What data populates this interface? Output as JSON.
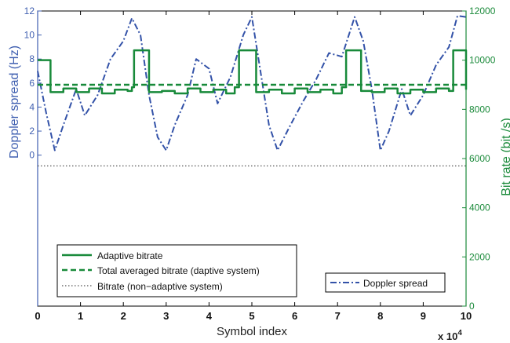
{
  "chart_data": {
    "type": "line",
    "xlabel": "Symbol index",
    "x_multiplier_label": "x 10",
    "x_multiplier_exp": "4",
    "ylabel_left": "Doppler spread (Hz)",
    "ylabel_right": "Bit rate (bit /s)",
    "xlim": [
      0,
      10
    ],
    "xticks": [
      "0",
      "1",
      "2",
      "3",
      "4",
      "5",
      "6",
      "7",
      "8",
      "9",
      "10"
    ],
    "ylim_left": [
      -12.57,
      12
    ],
    "yticks_left": [
      "0",
      "2",
      "4",
      "6",
      "8",
      "10",
      "12"
    ],
    "ylim_right": [
      0,
      12000
    ],
    "yticks_right": [
      "0",
      "2000",
      "4000",
      "6000",
      "8000",
      "10000",
      "12000"
    ],
    "colors": {
      "axis_left": "#3f5fb0",
      "axis_right": "#1a8a3a",
      "adaptive": "#188a3a",
      "doppler": "#3352a8",
      "nonadaptive": "#555555"
    },
    "series": [
      {
        "name": "Adaptive bitrate",
        "axis": "right",
        "style": "solid",
        "x": [
          0,
          0.3,
          0.6,
          0.9,
          1.2,
          1.5,
          1.8,
          2.1,
          2.2,
          2.25,
          2.55,
          2.6,
          2.9,
          3.2,
          3.5,
          3.8,
          4.1,
          4.4,
          4.6,
          4.7,
          5.05,
          5.1,
          5.4,
          5.7,
          6.0,
          6.3,
          6.6,
          6.9,
          7.1,
          7.2,
          7.5,
          7.55,
          7.8,
          8.1,
          8.4,
          8.7,
          9.0,
          9.3,
          9.6,
          9.7,
          9.95,
          10
        ],
        "y": [
          10000,
          8700,
          8850,
          8700,
          8850,
          8650,
          8800,
          8750,
          8900,
          10400,
          10400,
          8700,
          8750,
          8650,
          8850,
          8700,
          8800,
          8650,
          8900,
          10400,
          10400,
          8700,
          8800,
          8650,
          8850,
          8700,
          8800,
          8650,
          8900,
          10400,
          10400,
          8750,
          8700,
          8850,
          8650,
          8800,
          8700,
          8850,
          8750,
          10400,
          10400,
          8800
        ]
      },
      {
        "name": "Total averaged bitrate (daptive system)",
        "axis": "right",
        "style": "dashed",
        "x": [
          0,
          10
        ],
        "y": [
          9000,
          9000
        ]
      },
      {
        "name": "Bitrate (non−adaptive system)",
        "axis": "right",
        "style": "dotted",
        "x": [
          0,
          10
        ],
        "y": [
          5700,
          5700
        ]
      },
      {
        "name": "Doppler spread",
        "axis": "left",
        "style": "dashdot",
        "x": [
          0,
          0.2,
          0.4,
          0.6,
          0.9,
          1.1,
          1.4,
          1.7,
          2.0,
          2.2,
          2.4,
          2.6,
          2.8,
          3.0,
          3.2,
          3.5,
          3.7,
          4.0,
          4.2,
          4.5,
          4.8,
          5.0,
          5.2,
          5.4,
          5.6,
          5.9,
          6.2,
          6.5,
          6.8,
          7.1,
          7.4,
          7.6,
          7.8,
          8.0,
          8.2,
          8.5,
          8.7,
          9.0,
          9.3,
          9.6,
          9.8,
          10
        ],
        "y": [
          7.0,
          3.5,
          0.4,
          2.5,
          5.5,
          3.3,
          5.0,
          8.0,
          9.5,
          11.4,
          10.0,
          5.0,
          1.5,
          0.4,
          2.5,
          5.0,
          8.0,
          7.2,
          4.3,
          6.5,
          10.0,
          11.5,
          7.0,
          2.5,
          0.4,
          2.5,
          4.5,
          6.3,
          8.5,
          8.2,
          11.5,
          9.5,
          5.5,
          0.4,
          2.0,
          5.5,
          3.3,
          5.0,
          7.5,
          9.0,
          11.6,
          11.5
        ]
      }
    ],
    "legend_left": {
      "placement": "bottom-left",
      "entries": [
        "Adaptive bitrate",
        "Total averaged bitrate (daptive system)",
        "Bitrate (non−adaptive system)"
      ]
    },
    "legend_right": {
      "placement": "bottom-right",
      "entries": [
        "Doppler spread"
      ]
    },
    "grid": false
  }
}
